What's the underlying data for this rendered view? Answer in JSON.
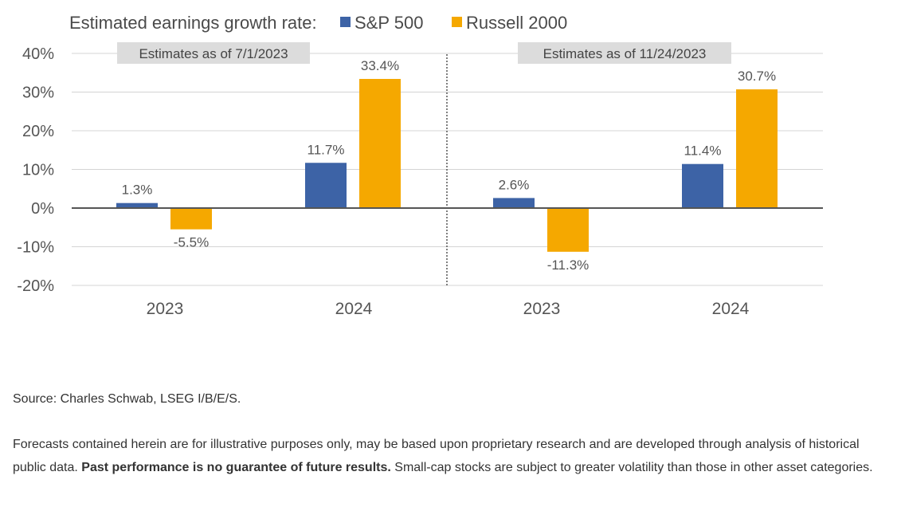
{
  "chart_data": {
    "type": "bar",
    "title": "Estimated earnings growth rate:",
    "panels": [
      {
        "label": "Estimates as of 7/1/2023",
        "categories": [
          "2023",
          "2024"
        ]
      },
      {
        "label": "Estimates as of 11/24/2023",
        "categories": [
          "2023",
          "2024"
        ]
      }
    ],
    "categories": [
      "2023",
      "2024",
      "2023",
      "2024"
    ],
    "series": [
      {
        "name": "S&P 500",
        "color": "#3d63a6",
        "values": [
          1.3,
          11.7,
          2.6,
          11.4
        ],
        "labels": [
          "1.3%",
          "11.7%",
          "2.6%",
          "11.4%"
        ]
      },
      {
        "name": "Russell 2000",
        "color": "#f5a800",
        "values": [
          -5.5,
          33.4,
          -11.3,
          30.7
        ],
        "labels": [
          "-5.5%",
          "33.4%",
          "-11.3%",
          "30.7%"
        ]
      }
    ],
    "yticks": [
      "40%",
      "30%",
      "20%",
      "10%",
      "0%",
      "-10%",
      "-20%"
    ],
    "ytick_values": [
      40,
      30,
      20,
      10,
      0,
      -10,
      -20
    ],
    "ylim": [
      -20,
      40
    ],
    "grid": true,
    "legend_position": "top"
  },
  "footer": {
    "source": "Source: Charles Schwab, LSEG I/B/E/S.",
    "disclaimer_pre": "Forecasts contained herein are for illustrative purposes only, may be based upon proprietary research and are developed through analysis of historical public data. ",
    "disclaimer_bold": "Past performance is no guarantee of future results.",
    "disclaimer_post": " Small-cap stocks are subject to greater volatility than those in other asset categories."
  }
}
